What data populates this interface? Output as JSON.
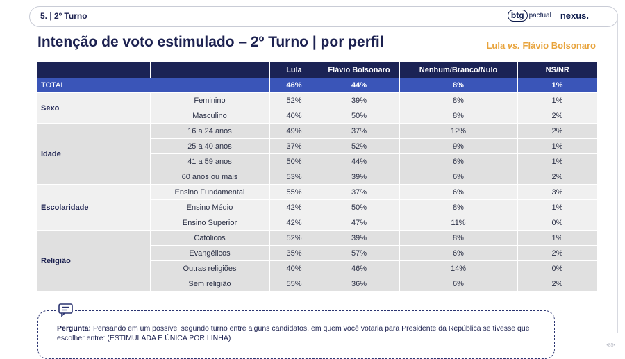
{
  "header": {
    "section": "5. | 2º Turno",
    "brand_btg": "btg",
    "brand_pactual": "pactual",
    "brand_nexus": "nexus."
  },
  "title": "Intenção de voto estimulado – 2º Turno | por perfil",
  "subtitle": {
    "a": "Lula",
    "vs": "vs.",
    "b": "Flávio Bolsonaro"
  },
  "table": {
    "columns": [
      "",
      "",
      "Lula",
      "Flávio Bolsonaro",
      "Nenhum/Branco/Nulo",
      "NS/NR"
    ],
    "total": {
      "label": "TOTAL",
      "values": [
        "46%",
        "44%",
        "8%",
        "1%"
      ]
    },
    "groups": [
      {
        "name": "Sexo",
        "rows": [
          {
            "label": "Feminino",
            "values": [
              "52%",
              "39%",
              "8%",
              "1%"
            ]
          },
          {
            "label": "Masculino",
            "values": [
              "40%",
              "50%",
              "8%",
              "2%"
            ]
          }
        ]
      },
      {
        "name": "Idade",
        "rows": [
          {
            "label": "16 a 24 anos",
            "values": [
              "49%",
              "37%",
              "12%",
              "2%"
            ]
          },
          {
            "label": "25 a 40 anos",
            "values": [
              "37%",
              "52%",
              "9%",
              "1%"
            ]
          },
          {
            "label": "41 a 59 anos",
            "values": [
              "50%",
              "44%",
              "6%",
              "1%"
            ]
          },
          {
            "label": "60 anos ou mais",
            "values": [
              "53%",
              "39%",
              "6%",
              "2%"
            ]
          }
        ]
      },
      {
        "name": "Escolaridade",
        "rows": [
          {
            "label": "Ensino Fundamental",
            "values": [
              "55%",
              "37%",
              "6%",
              "3%"
            ]
          },
          {
            "label": "Ensino Médio",
            "values": [
              "42%",
              "50%",
              "8%",
              "1%"
            ]
          },
          {
            "label": "Ensino Superior",
            "values": [
              "42%",
              "47%",
              "11%",
              "0%"
            ]
          }
        ]
      },
      {
        "name": "Religião",
        "rows": [
          {
            "label": "Católicos",
            "values": [
              "52%",
              "39%",
              "8%",
              "1%"
            ]
          },
          {
            "label": "Evangélicos",
            "values": [
              "35%",
              "57%",
              "6%",
              "2%"
            ]
          },
          {
            "label": "Outras religiões",
            "values": [
              "40%",
              "46%",
              "14%",
              "0%"
            ]
          },
          {
            "label": "Sem religião",
            "values": [
              "55%",
              "36%",
              "6%",
              "2%"
            ]
          }
        ]
      }
    ]
  },
  "note": {
    "icon": "chat-bubble-icon",
    "label": "Pergunta:",
    "text": "Pensando em um possível segundo turno entre alguns candidatos, em quem você votaria para Presidente da República se tivesse que escolher entre: (ESTIMULADA E ÚNICA POR LINHA)"
  },
  "page_number": "•85•",
  "colors": {
    "navy": "#1b2355",
    "total_blue": "#3a55b8",
    "accent_orange": "#e8a33b"
  }
}
